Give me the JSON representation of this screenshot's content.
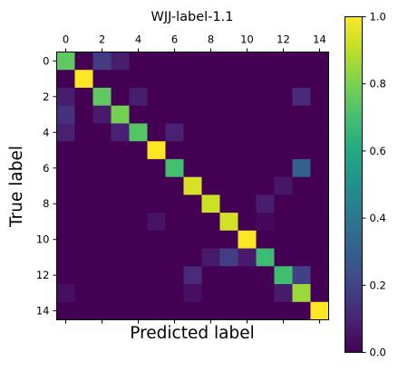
{
  "chart_data": {
    "type": "heatmap",
    "title": "WJJ-label-1.1",
    "xlabel": "Predicted label",
    "ylabel": "True label",
    "x_ticks": [
      0,
      2,
      4,
      6,
      8,
      10,
      12,
      14
    ],
    "y_ticks": [
      0,
      2,
      4,
      6,
      8,
      10,
      12,
      14
    ],
    "x_tick_position": "top",
    "colormap": "viridis",
    "vmin": 0.0,
    "vmax": 1.0,
    "colorbar_ticks": [
      "0.0",
      "0.2",
      "0.4",
      "0.6",
      "0.8",
      "1.0"
    ],
    "matrix": [
      [
        0.75,
        0.0,
        0.17,
        0.08,
        0.0,
        0.0,
        0.0,
        0.0,
        0.0,
        0.0,
        0.0,
        0.0,
        0.0,
        0.0,
        0.0
      ],
      [
        0.0,
        1.0,
        0.0,
        0.0,
        0.0,
        0.0,
        0.0,
        0.0,
        0.0,
        0.0,
        0.0,
        0.0,
        0.0,
        0.0,
        0.0
      ],
      [
        0.08,
        0.0,
        0.75,
        0.0,
        0.08,
        0.0,
        0.0,
        0.0,
        0.0,
        0.0,
        0.0,
        0.0,
        0.0,
        0.12,
        0.0
      ],
      [
        0.14,
        0.0,
        0.07,
        0.79,
        0.0,
        0.0,
        0.0,
        0.0,
        0.0,
        0.0,
        0.0,
        0.0,
        0.0,
        0.0,
        0.0
      ],
      [
        0.09,
        0.0,
        0.0,
        0.09,
        0.73,
        0.0,
        0.09,
        0.0,
        0.0,
        0.0,
        0.0,
        0.0,
        0.0,
        0.0,
        0.0
      ],
      [
        0.0,
        0.0,
        0.0,
        0.0,
        0.0,
        1.0,
        0.0,
        0.0,
        0.0,
        0.0,
        0.0,
        0.0,
        0.0,
        0.0,
        0.0
      ],
      [
        0.0,
        0.0,
        0.0,
        0.0,
        0.0,
        0.0,
        0.7,
        0.0,
        0.0,
        0.0,
        0.0,
        0.0,
        0.0,
        0.3,
        0.0
      ],
      [
        0.0,
        0.0,
        0.0,
        0.0,
        0.0,
        0.0,
        0.0,
        0.94,
        0.0,
        0.0,
        0.0,
        0.0,
        0.06,
        0.0,
        0.0
      ],
      [
        0.0,
        0.0,
        0.0,
        0.0,
        0.0,
        0.0,
        0.0,
        0.0,
        0.92,
        0.0,
        0.0,
        0.08,
        0.0,
        0.0,
        0.0
      ],
      [
        0.0,
        0.0,
        0.0,
        0.0,
        0.0,
        0.05,
        0.0,
        0.0,
        0.0,
        0.93,
        0.0,
        0.02,
        0.0,
        0.0,
        0.0
      ],
      [
        0.0,
        0.0,
        0.0,
        0.0,
        0.0,
        0.0,
        0.0,
        0.0,
        0.0,
        0.0,
        1.0,
        0.0,
        0.0,
        0.0,
        0.0
      ],
      [
        0.0,
        0.0,
        0.0,
        0.0,
        0.0,
        0.0,
        0.0,
        0.0,
        0.07,
        0.18,
        0.07,
        0.68,
        0.0,
        0.0,
        0.0
      ],
      [
        0.0,
        0.0,
        0.0,
        0.0,
        0.0,
        0.0,
        0.0,
        0.12,
        0.0,
        0.0,
        0.0,
        0.0,
        0.69,
        0.19,
        0.0
      ],
      [
        0.04,
        0.0,
        0.0,
        0.0,
        0.0,
        0.0,
        0.0,
        0.04,
        0.0,
        0.0,
        0.0,
        0.0,
        0.07,
        0.85,
        0.0
      ],
      [
        0.0,
        0.0,
        0.0,
        0.0,
        0.0,
        0.0,
        0.0,
        0.0,
        0.0,
        0.0,
        0.0,
        0.0,
        0.0,
        0.0,
        1.0
      ]
    ]
  }
}
